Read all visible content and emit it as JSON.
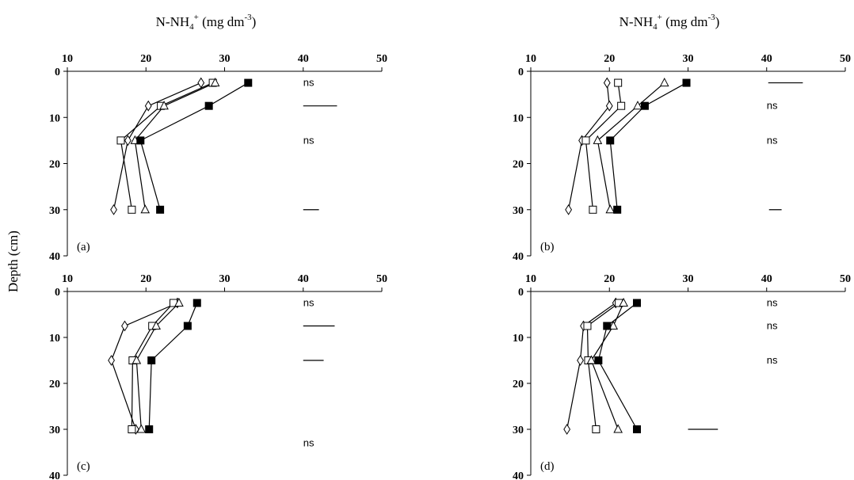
{
  "figure": {
    "shared_ylabel": "Depth (cm)",
    "xlabel_base": "N-NH",
    "xlabel_sub": "4",
    "xlabel_sup": "+",
    "xlabel_unit": " (mg dm",
    "xlabel_unit_sup": "-3",
    "xlabel_close": ")"
  },
  "chart_data": [
    {
      "type": "line",
      "panel_label": "(a)",
      "x_ticks": [
        10,
        20,
        30,
        40,
        50
      ],
      "y_ticks": [
        0,
        10,
        20,
        30,
        40
      ],
      "xlim": [
        10,
        50
      ],
      "ylim": [
        40,
        0
      ],
      "x_axis_position": "top",
      "series": [
        {
          "marker": "diamond",
          "fill": "#ffffff",
          "points": [
            [
              27,
              2.5
            ],
            [
              20.3,
              7.5
            ],
            [
              17.7,
              15
            ],
            [
              15.9,
              30
            ]
          ]
        },
        {
          "marker": "square",
          "fill": "#ffffff",
          "points": [
            [
              28.5,
              2.5
            ],
            [
              21.9,
              7.5
            ],
            [
              16.8,
              15
            ],
            [
              18.2,
              30
            ]
          ]
        },
        {
          "marker": "triangle",
          "fill": "#ffffff",
          "points": [
            [
              28.8,
              2.5
            ],
            [
              22.3,
              7.5
            ],
            [
              18.6,
              15
            ],
            [
              19.9,
              30
            ]
          ]
        },
        {
          "marker": "square",
          "fill": "#000000",
          "points": [
            [
              33,
              2.5
            ],
            [
              28,
              7.5
            ],
            [
              19.3,
              15
            ],
            [
              21.8,
              30
            ]
          ]
        }
      ],
      "annotations": [
        {
          "type": "text",
          "text": "ns",
          "depth": 2.5
        },
        {
          "type": "bar",
          "depth": 7.5,
          "from": 40,
          "to": 44.3
        },
        {
          "type": "text",
          "text": "ns",
          "depth": 15
        },
        {
          "type": "bar",
          "depth": 30,
          "from": 40,
          "to": 42
        }
      ]
    },
    {
      "type": "line",
      "panel_label": "(b)",
      "x_ticks": [
        10,
        20,
        30,
        40,
        50
      ],
      "y_ticks": [
        0,
        10,
        20,
        30,
        40
      ],
      "xlim": [
        10,
        50
      ],
      "ylim": [
        40,
        0
      ],
      "x_axis_position": "top",
      "series": [
        {
          "marker": "diamond",
          "fill": "#ffffff",
          "points": [
            [
              19.7,
              2.5
            ],
            [
              20,
              7.5
            ],
            [
              16.5,
              15
            ],
            [
              14.8,
              30
            ]
          ]
        },
        {
          "marker": "square",
          "fill": "#ffffff",
          "points": [
            [
              21.1,
              2.5
            ],
            [
              21.5,
              7.5
            ],
            [
              17,
              15
            ],
            [
              17.9,
              30
            ]
          ]
        },
        {
          "marker": "triangle",
          "fill": "#ffffff",
          "points": [
            [
              27,
              2.5
            ],
            [
              23.6,
              7.5
            ],
            [
              18.5,
              15
            ],
            [
              20.1,
              30
            ]
          ]
        },
        {
          "marker": "square",
          "fill": "#000000",
          "points": [
            [
              29.8,
              2.5
            ],
            [
              24.5,
              7.5
            ],
            [
              20.1,
              15
            ],
            [
              21,
              30
            ]
          ]
        }
      ],
      "annotations": [
        {
          "type": "bar",
          "depth": 2.5,
          "from": 40.2,
          "to": 44.6
        },
        {
          "type": "text",
          "text": "ns",
          "depth": 7.5
        },
        {
          "type": "text",
          "text": "ns",
          "depth": 15
        },
        {
          "type": "bar",
          "depth": 30,
          "from": 40.3,
          "to": 41.9
        }
      ]
    },
    {
      "type": "line",
      "panel_label": "(c)",
      "x_ticks": [
        10,
        20,
        30,
        40,
        50
      ],
      "y_ticks": [
        0,
        10,
        20,
        30,
        40
      ],
      "xlim": [
        10,
        50
      ],
      "ylim": [
        40,
        0
      ],
      "x_axis_position": "top",
      "series": [
        {
          "marker": "diamond",
          "fill": "#ffffff",
          "points": [
            [
              24,
              2.5
            ],
            [
              17.3,
              7.5
            ],
            [
              15.6,
              15
            ],
            [
              18.7,
              30
            ]
          ]
        },
        {
          "marker": "square",
          "fill": "#ffffff",
          "points": [
            [
              23.5,
              2.5
            ],
            [
              20.8,
              7.5
            ],
            [
              18.3,
              15
            ],
            [
              18.2,
              30
            ]
          ]
        },
        {
          "marker": "triangle",
          "fill": "#ffffff",
          "points": [
            [
              24.2,
              2.5
            ],
            [
              21.3,
              7.5
            ],
            [
              18.8,
              15
            ],
            [
              19.4,
              30
            ]
          ]
        },
        {
          "marker": "square",
          "fill": "#000000",
          "points": [
            [
              26.5,
              2.5
            ],
            [
              25.3,
              7.5
            ],
            [
              20.7,
              15
            ],
            [
              20.4,
              30
            ]
          ]
        }
      ],
      "annotations": [
        {
          "type": "text",
          "text": "ns",
          "depth": 2.5
        },
        {
          "type": "bar",
          "depth": 7.5,
          "from": 40,
          "to": 44
        },
        {
          "type": "bar",
          "depth": 15,
          "from": 40,
          "to": 42.6
        },
        {
          "type": "text",
          "text": "ns",
          "depth": 33
        }
      ]
    },
    {
      "type": "line",
      "panel_label": "(d)",
      "x_ticks": [
        10,
        20,
        30,
        40,
        50
      ],
      "y_ticks": [
        0,
        10,
        20,
        30,
        40
      ],
      "xlim": [
        10,
        50
      ],
      "ylim": [
        40,
        0
      ],
      "x_axis_position": "top",
      "series": [
        {
          "marker": "diamond",
          "fill": "#ffffff",
          "points": [
            [
              20.8,
              2.5
            ],
            [
              16.7,
              7.5
            ],
            [
              16.3,
              15
            ],
            [
              14.6,
              30
            ]
          ]
        },
        {
          "marker": "square",
          "fill": "#ffffff",
          "points": [
            [
              21.2,
              2.5
            ],
            [
              17.2,
              7.5
            ],
            [
              17.3,
              15
            ],
            [
              18.3,
              30
            ]
          ]
        },
        {
          "marker": "triangle",
          "fill": "#ffffff",
          "points": [
            [
              21.8,
              2.5
            ],
            [
              20.5,
              7.5
            ],
            [
              17.7,
              15
            ],
            [
              21.1,
              30
            ]
          ]
        },
        {
          "marker": "square",
          "fill": "#000000",
          "points": [
            [
              23.5,
              2.5
            ],
            [
              19.7,
              7.5
            ],
            [
              18.6,
              15
            ],
            [
              23.5,
              30
            ]
          ]
        }
      ],
      "annotations": [
        {
          "type": "text",
          "text": "ns",
          "depth": 2.5
        },
        {
          "type": "text",
          "text": "ns",
          "depth": 7.5
        },
        {
          "type": "text",
          "text": "ns",
          "depth": 15
        },
        {
          "type": "bar",
          "depth": 30,
          "from": 30,
          "to": 33.8
        }
      ]
    }
  ]
}
